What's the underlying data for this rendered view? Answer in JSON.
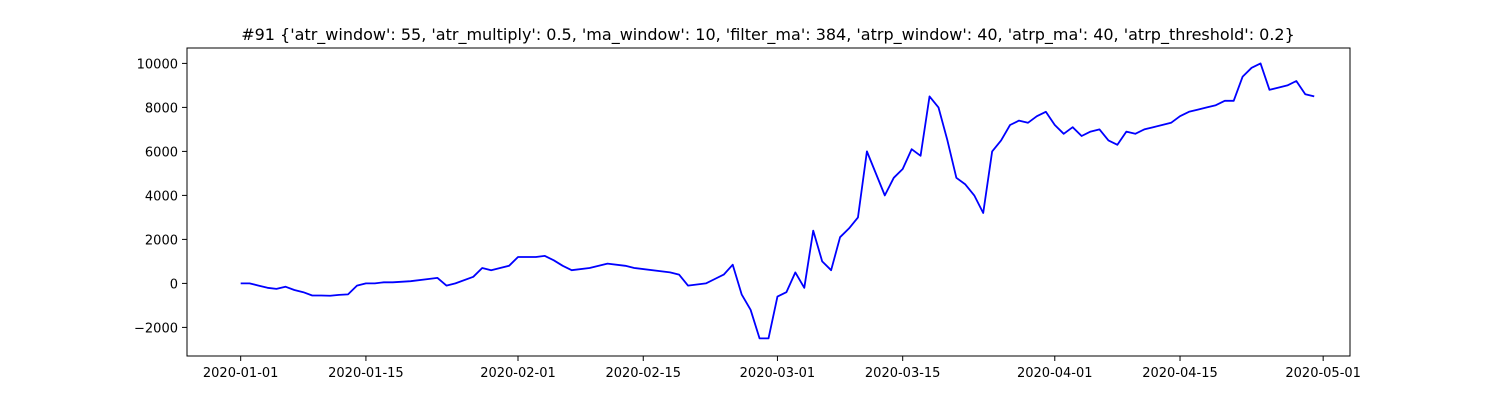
{
  "chart_data": {
    "type": "line",
    "title": "#91 {'atr_window': 55, 'atr_multiply': 0.5, 'ma_window': 10, 'filter_ma': 384, 'atrp_window': 40, 'atrp_ma': 40, 'atrp_threshold': 0.2}",
    "xlabel": "",
    "ylabel": "",
    "xlim": [
      "2019-12-26",
      "2020-05-04"
    ],
    "ylim": [
      -3300,
      10700
    ],
    "x_ticks": [
      "2020-01-01",
      "2020-01-15",
      "2020-02-01",
      "2020-02-15",
      "2020-03-01",
      "2020-03-15",
      "2020-04-01",
      "2020-04-15",
      "2020-05-01"
    ],
    "y_ticks": [
      -2000,
      0,
      2000,
      4000,
      6000,
      8000,
      10000
    ],
    "y_tick_labels": [
      "−2000",
      "0",
      "2000",
      "4000",
      "6000",
      "8000",
      "10000"
    ],
    "grid": false,
    "colors": {
      "series": "#0000ff"
    },
    "series": [
      {
        "x": [
          "2020-01-01",
          "2020-01-02",
          "2020-01-03",
          "2020-01-04",
          "2020-01-05",
          "2020-01-06",
          "2020-01-07",
          "2020-01-08",
          "2020-01-09",
          "2020-01-10",
          "2020-01-11",
          "2020-01-12",
          "2020-01-13",
          "2020-01-14",
          "2020-01-15",
          "2020-01-16",
          "2020-01-17",
          "2020-01-18",
          "2020-01-20",
          "2020-01-22",
          "2020-01-23",
          "2020-01-24",
          "2020-01-25",
          "2020-01-27",
          "2020-01-28",
          "2020-01-29",
          "2020-01-30",
          "2020-01-31",
          "2020-02-01",
          "2020-02-02",
          "2020-02-03",
          "2020-02-04",
          "2020-02-05",
          "2020-02-06",
          "2020-02-07",
          "2020-02-09",
          "2020-02-11",
          "2020-02-13",
          "2020-02-14",
          "2020-02-18",
          "2020-02-19",
          "2020-02-20",
          "2020-02-22",
          "2020-02-23",
          "2020-02-24",
          "2020-02-25",
          "2020-02-26",
          "2020-02-27",
          "2020-02-28",
          "2020-02-29",
          "2020-03-01",
          "2020-03-02",
          "2020-03-03",
          "2020-03-04",
          "2020-03-05",
          "2020-03-06",
          "2020-03-07",
          "2020-03-08",
          "2020-03-09",
          "2020-03-10",
          "2020-03-11",
          "2020-03-12",
          "2020-03-13",
          "2020-03-14",
          "2020-03-15",
          "2020-03-16",
          "2020-03-17",
          "2020-03-18",
          "2020-03-19",
          "2020-03-20",
          "2020-03-21",
          "2020-03-22",
          "2020-03-23",
          "2020-03-24",
          "2020-03-25",
          "2020-03-26",
          "2020-03-27",
          "2020-03-28",
          "2020-03-29",
          "2020-03-30",
          "2020-03-31",
          "2020-04-01",
          "2020-04-02",
          "2020-04-03",
          "2020-04-04",
          "2020-04-05",
          "2020-04-06",
          "2020-04-07",
          "2020-04-08",
          "2020-04-09",
          "2020-04-10",
          "2020-04-11",
          "2020-04-12",
          "2020-04-13",
          "2020-04-14",
          "2020-04-15",
          "2020-04-16",
          "2020-04-17",
          "2020-04-18",
          "2020-04-19",
          "2020-04-20",
          "2020-04-21",
          "2020-04-22",
          "2020-04-23",
          "2020-04-24",
          "2020-04-25",
          "2020-04-26",
          "2020-04-27",
          "2020-04-28",
          "2020-04-29",
          "2020-04-30"
        ],
        "values": [
          0,
          0,
          -100,
          -200,
          -250,
          -150,
          -300,
          -400,
          -550,
          -550,
          -560,
          -520,
          -500,
          -100,
          0,
          0,
          50,
          50,
          100,
          200,
          250,
          -100,
          0,
          300,
          700,
          600,
          700,
          800,
          1200,
          1200,
          1200,
          1250,
          1050,
          800,
          600,
          700,
          900,
          800,
          700,
          500,
          400,
          -100,
          0,
          200,
          400,
          850,
          -500,
          -1200,
          -2500,
          -2500,
          -600,
          -400,
          500,
          -200,
          2400,
          1000,
          600,
          2100,
          2500,
          3000,
          6000,
          5000,
          4000,
          4800,
          5200,
          6100,
          5800,
          8500,
          8000,
          6500,
          4800,
          4500,
          4000,
          3200,
          6000,
          6500,
          7200,
          7400,
          7300,
          7600,
          7800,
          7200,
          6800,
          7100,
          6700,
          6900,
          7000,
          6500,
          6300,
          6900,
          6800,
          7000,
          7100,
          7200,
          7300,
          7600,
          7800,
          7900,
          8000,
          8100,
          8300,
          8300,
          9400,
          9800,
          10000,
          8800,
          8900,
          9000,
          9200,
          8600,
          8500
        ]
      }
    ]
  }
}
